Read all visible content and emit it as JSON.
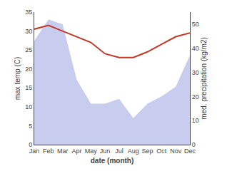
{
  "chart_data": {
    "type": "line",
    "categories": [
      "Jan",
      "Feb",
      "Mar",
      "Apr",
      "May",
      "Jun",
      "Jul",
      "Aug",
      "Sep",
      "Oct",
      "Nov",
      "Dec"
    ],
    "series": [
      {
        "type": "area",
        "axis": "y2",
        "color": "#c8ccee",
        "values": [
          43,
          52,
          50,
          27,
          17,
          17,
          19,
          11,
          17,
          20,
          24,
          37
        ]
      },
      {
        "type": "line",
        "color": "#c0392b",
        "values": [
          30.5,
          31.5,
          30.0,
          28.5,
          27.0,
          24.0,
          23.0,
          23.0,
          24.5,
          26.5,
          28.5,
          29.5
        ]
      }
    ],
    "xlabel": "date (month)",
    "ylabel": "max temp (C)",
    "y2label": "med. precipitation (kg/m2)",
    "ylim": [
      0,
      35
    ],
    "yticks": [
      0,
      5,
      10,
      15,
      20,
      25,
      30,
      35
    ],
    "y2lim": [
      0,
      55
    ],
    "y2ticks": [
      0,
      10,
      20,
      30,
      40,
      50
    ],
    "grid": false
  }
}
